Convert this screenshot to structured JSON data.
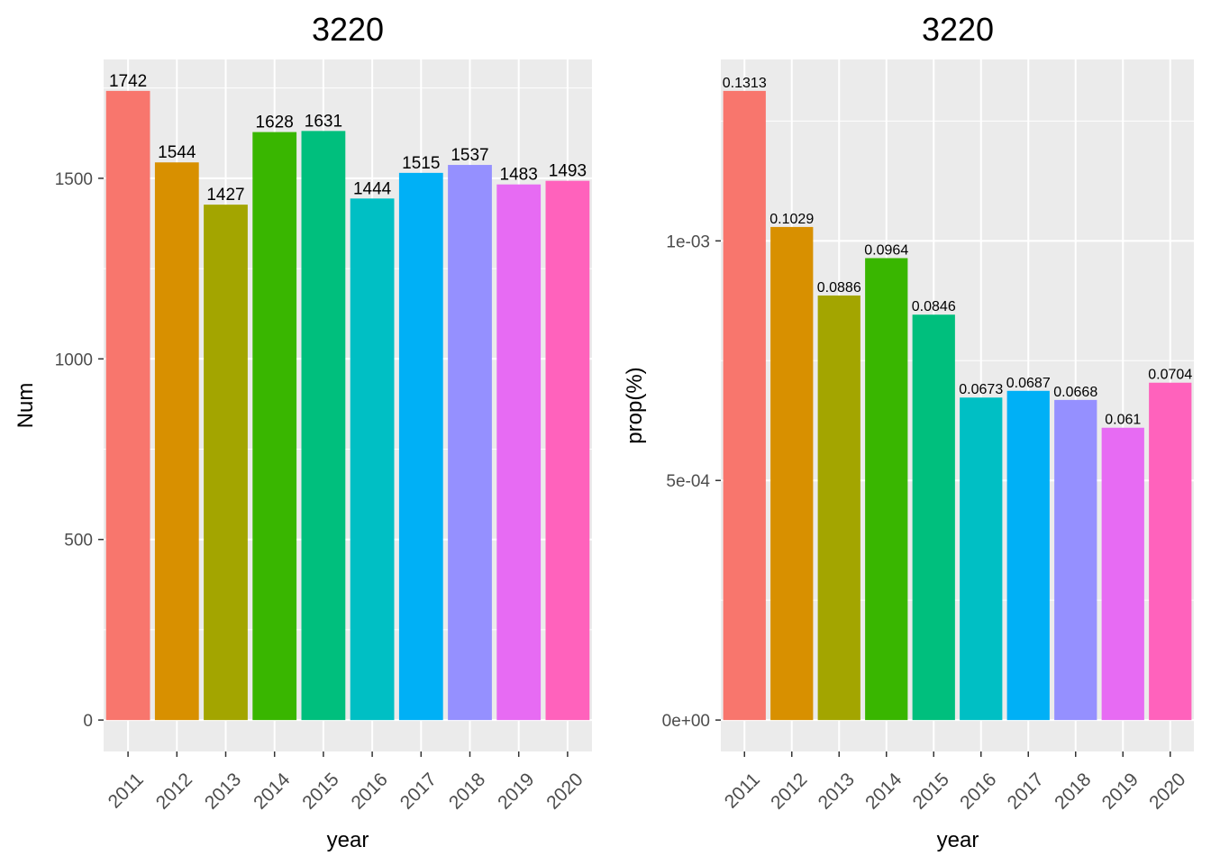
{
  "chart_data": [
    {
      "type": "bar",
      "title": "3220",
      "xlabel": "year",
      "ylabel": "Num",
      "categories": [
        "2011",
        "2012",
        "2013",
        "2014",
        "2015",
        "2016",
        "2017",
        "2018",
        "2019",
        "2020"
      ],
      "values": [
        1742,
        1544,
        1427,
        1628,
        1631,
        1444,
        1515,
        1537,
        1483,
        1493
      ],
      "data_labels": [
        "1742",
        "1544",
        "1427",
        "1628",
        "1631",
        "1444",
        "1515",
        "1537",
        "1483",
        "1493"
      ],
      "ylim": [
        -87,
        1829
      ],
      "yticks": [
        0,
        500,
        1000,
        1500
      ],
      "ytick_labels": [
        "0",
        "500",
        "1000",
        "1500"
      ],
      "colors": [
        "#F8766D",
        "#D89000",
        "#A3A500",
        "#39B600",
        "#00BF7D",
        "#00BFC4",
        "#00B0F6",
        "#9590FF",
        "#E76BF3",
        "#FF62BC"
      ],
      "grid": true,
      "legend": "none"
    },
    {
      "type": "bar",
      "title": "3220",
      "xlabel": "year",
      "ylabel": "prop(%)",
      "categories": [
        "2011",
        "2012",
        "2013",
        "2014",
        "2015",
        "2016",
        "2017",
        "2018",
        "2019",
        "2020"
      ],
      "values": [
        0.001313,
        0.001029,
        0.000886,
        0.000964,
        0.000846,
        0.000673,
        0.000687,
        0.000668,
        0.00061,
        0.000704
      ],
      "data_labels": [
        "0.1313",
        "0.1029",
        "0.0886",
        "0.0964",
        "0.0846",
        "0.0673",
        "0.0687",
        "0.0668",
        "0.061",
        "0.0704"
      ],
      "ylim": [
        -6.56e-05,
        0.0013786
      ],
      "yticks": [
        0,
        0.0005,
        0.001
      ],
      "ytick_labels": [
        "0e+00",
        "5e-04",
        "1e-03"
      ],
      "colors": [
        "#F8766D",
        "#D89000",
        "#A3A500",
        "#39B600",
        "#00BF7D",
        "#00BFC4",
        "#00B0F6",
        "#9590FF",
        "#E76BF3",
        "#FF62BC"
      ],
      "grid": true,
      "legend": "none"
    }
  ]
}
